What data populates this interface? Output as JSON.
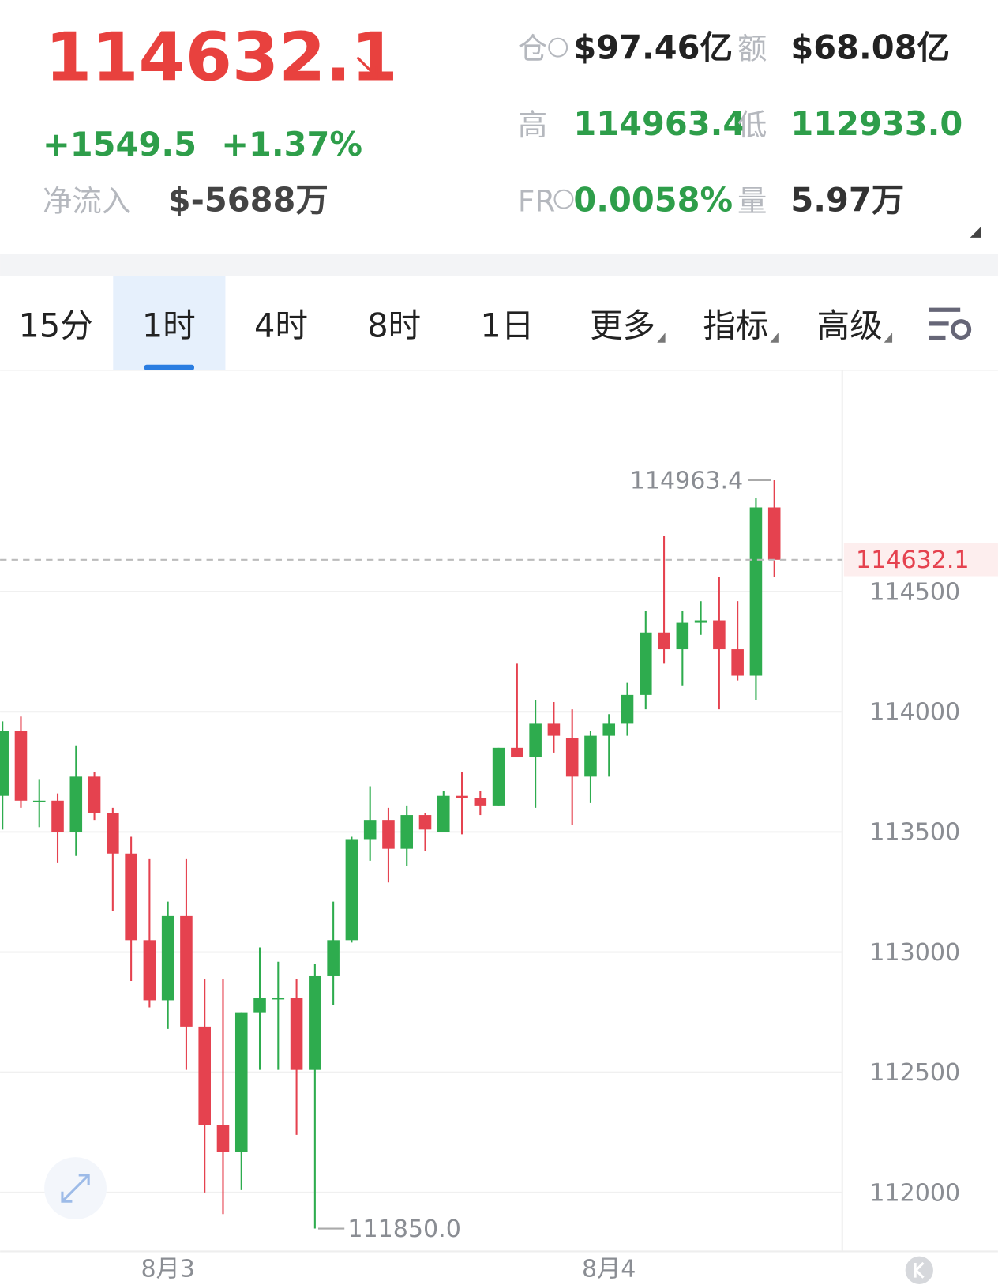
{
  "header": {
    "price": "114632.1",
    "change": "+1549.5",
    "change_pct": "+1.37%",
    "net_inflow_label": "净流入",
    "net_inflow": "$-5688万",
    "stats": [
      {
        "label": "仓",
        "value": "$97.46亿",
        "color": "#222222"
      },
      {
        "label": "额",
        "value": "$68.08亿",
        "color": "#222222"
      },
      {
        "label": "高",
        "value": "114963.4",
        "color": "#2e9e4a"
      },
      {
        "label": "低",
        "value": "112933.0",
        "color": "#2e9e4a"
      },
      {
        "label": "FR",
        "value": "0.0058%",
        "color": "#2e9e4a"
      },
      {
        "label": "量",
        "value": "5.97万",
        "color": "#333333"
      }
    ]
  },
  "tabs": {
    "items": [
      "15分",
      "1时",
      "4时",
      "8时",
      "1日",
      "更多",
      "指标",
      "高级"
    ],
    "active": 1
  },
  "chart_data": {
    "type": "candlestick",
    "categories": [
      null,
      null,
      null,
      null,
      null,
      null,
      null,
      null,
      null,
      "8月3",
      null,
      null,
      null,
      null,
      null,
      null,
      null,
      null,
      null,
      null,
      null,
      null,
      null,
      null,
      null,
      null,
      null,
      null,
      null,
      null,
      null,
      null,
      null,
      "8月4",
      null,
      null,
      null,
      null,
      null,
      null,
      null,
      null,
      null
    ],
    "open": [
      113650,
      113920,
      113630,
      113630,
      113500,
      113730,
      113580,
      113410,
      113050,
      112800,
      113150,
      112690,
      112280,
      112170,
      112750,
      112810,
      112810,
      112510,
      112900,
      113050,
      113470,
      113550,
      113430,
      113570,
      113500,
      113650,
      113640,
      113610,
      113850,
      113810,
      113950,
      113890,
      113730,
      113900,
      113950,
      114070,
      114330,
      114260,
      114370,
      114380,
      114260,
      114150,
      114850
    ],
    "high": [
      113960,
      113980,
      113720,
      113660,
      113860,
      113750,
      113600,
      113480,
      113390,
      113210,
      113390,
      112890,
      112890,
      112750,
      113020,
      112960,
      112890,
      112950,
      113210,
      113480,
      113690,
      113600,
      113610,
      113580,
      113670,
      113750,
      113670,
      113850,
      114200,
      114050,
      114040,
      114010,
      113920,
      113990,
      114120,
      114420,
      114730,
      114420,
      114460,
      114560,
      114460,
      114890,
      114963.4
    ],
    "low": [
      113510,
      113600,
      113520,
      113370,
      113400,
      113550,
      113170,
      112880,
      112770,
      112680,
      112510,
      112000,
      111910,
      112010,
      112510,
      112510,
      112240,
      111850,
      112780,
      113040,
      113380,
      113290,
      113360,
      113420,
      113500,
      113490,
      113570,
      113610,
      113810,
      113600,
      113830,
      113530,
      113620,
      113730,
      113900,
      114010,
      114200,
      114110,
      114320,
      114010,
      114130,
      114050,
      114560
    ],
    "close": [
      113920,
      113630,
      113630,
      113500,
      113730,
      113580,
      113410,
      113050,
      112800,
      113150,
      112690,
      112280,
      112170,
      112750,
      112810,
      112810,
      112510,
      112900,
      113050,
      113470,
      113550,
      113430,
      113570,
      113510,
      113650,
      113640,
      113610,
      113850,
      113810,
      113950,
      113900,
      113730,
      113900,
      113950,
      114070,
      114330,
      114260,
      114370,
      114380,
      114260,
      114150,
      114850,
      114632.1
    ],
    "up_color": "#2eac4e",
    "down_color": "#e5424f",
    "ylim": [
      111755,
      115420
    ],
    "yticks": [
      112000,
      112500,
      113000,
      113500,
      114000,
      114500
    ],
    "grid": true,
    "last_price": 114632.1,
    "high_label": 114963.4,
    "low_label": {
      "value": 111850,
      "label": "111850.0"
    }
  }
}
